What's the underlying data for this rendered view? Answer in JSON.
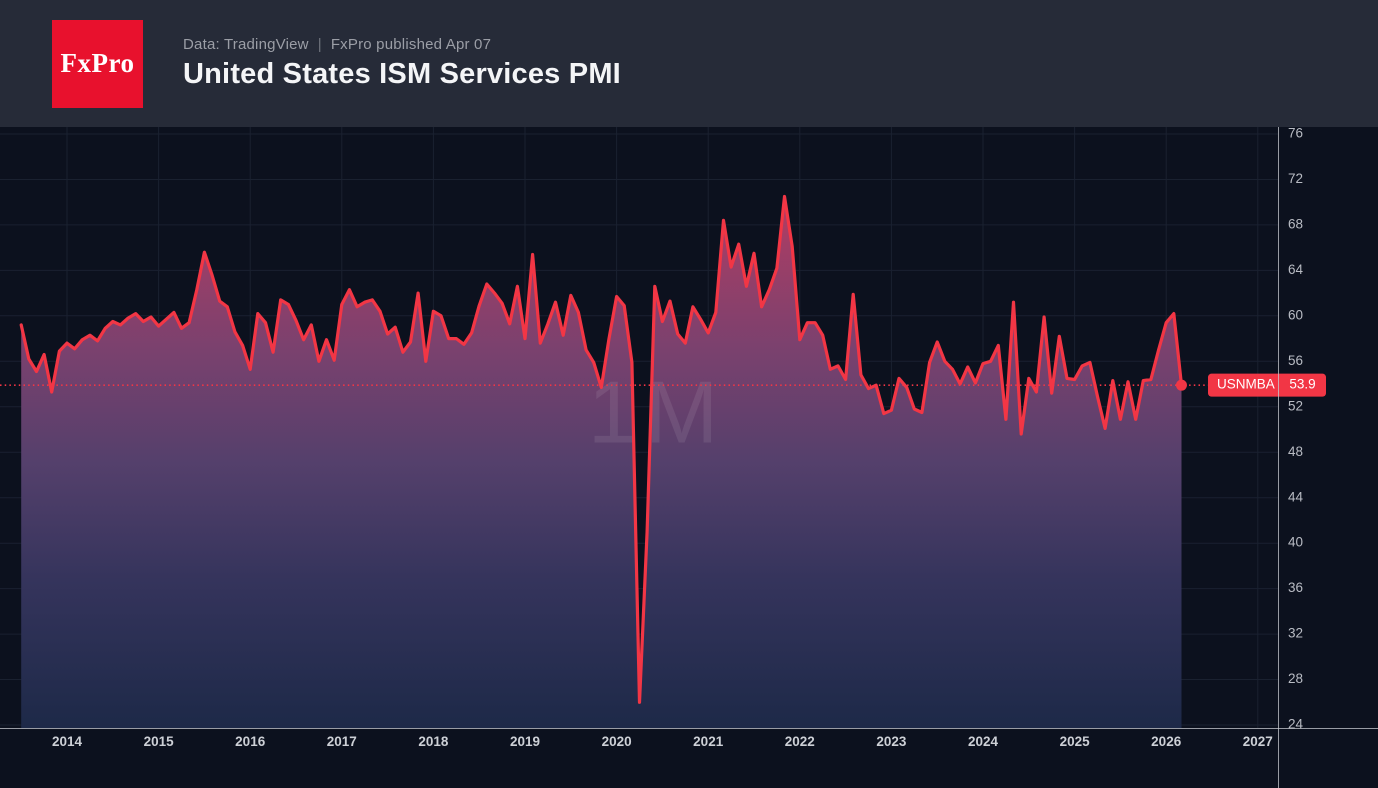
{
  "header": {
    "logo_text": "FxPro",
    "data_source": "Data: TradingView",
    "separator": "|",
    "published": "FxPro published Apr 07",
    "title": "United States ISM Services PMI"
  },
  "chart_data": {
    "type": "area",
    "title": "United States ISM Services PMI",
    "series_name": "USNMBA",
    "timeframe_watermark": "1M",
    "last_value": 53.9,
    "last_value_label": "53.9",
    "frequency": "monthly",
    "start": {
      "year": 2013,
      "month": 7
    },
    "end": {
      "year": 2026,
      "month": 3
    },
    "x_ticks": [
      2014,
      2015,
      2016,
      2017,
      2018,
      2019,
      2020,
      2021,
      2022,
      2023,
      2024,
      2025,
      2026,
      2027
    ],
    "y_ticks": [
      76,
      72,
      68,
      64,
      60,
      56,
      52,
      48,
      44,
      40,
      36,
      32,
      28,
      24
    ],
    "ylim": [
      23.4,
      77.1
    ],
    "grid": true,
    "legend_position": "none",
    "values": [
      59.2,
      56.2,
      55.1,
      56.6,
      53.3,
      56.9,
      57.6,
      57.1,
      57.9,
      58.3,
      57.8,
      58.9,
      59.5,
      59.2,
      59.8,
      60.2,
      59.5,
      59.9,
      59.1,
      59.7,
      60.3,
      58.9,
      59.4,
      62.3,
      65.6,
      63.6,
      61.3,
      60.8,
      58.6,
      57.4,
      55.3,
      60.2,
      59.4,
      56.8,
      61.4,
      61.0,
      59.6,
      57.9,
      59.2,
      56.0,
      57.9,
      56.1,
      61.0,
      62.3,
      60.8,
      61.2,
      61.4,
      60.4,
      58.4,
      59.0,
      56.8,
      57.7,
      62.0,
      56.0,
      60.4,
      60.0,
      58.0,
      58.0,
      57.5,
      58.5,
      60.9,
      62.8,
      62.0,
      61.1,
      59.3,
      62.6,
      58.0,
      65.4,
      57.6,
      59.3,
      61.2,
      58.3,
      61.8,
      60.3,
      57.0,
      55.9,
      53.7,
      58.0,
      61.7,
      60.9,
      55.9,
      26.0,
      41.0,
      62.6,
      59.5,
      61.3,
      58.4,
      57.6,
      60.8,
      59.7,
      58.5,
      60.3,
      68.4,
      64.3,
      66.3,
      62.6,
      65.5,
      60.8,
      62.3,
      64.2,
      70.5,
      66.1,
      57.9,
      59.4,
      59.4,
      58.3,
      55.3,
      55.6,
      54.4,
      61.9,
      54.8,
      53.6,
      53.9,
      51.4,
      51.7,
      54.5,
      53.7,
      51.8,
      51.5,
      55.9,
      57.7,
      56.0,
      55.3,
      54.0,
      55.5,
      54.1,
      55.8,
      56.0,
      57.4,
      50.9,
      61.2,
      49.6,
      54.5,
      53.3,
      59.9,
      53.2,
      58.2,
      54.5,
      54.4,
      55.6,
      55.9,
      52.9,
      50.1,
      54.3,
      50.9,
      54.2,
      50.9,
      54.3,
      54.4,
      57.0,
      59.4,
      60.2,
      53.9
    ],
    "colors": {
      "line": "#f23645",
      "price_badge": "#f23645",
      "dot": "#f23645",
      "chart_bg": "#0c111e",
      "header_bg": "#262b38",
      "grid": "#1a2130",
      "axis_text": "#b9bcc4",
      "year_text": "#cdd0d6",
      "axis_line": "rgba(200,203,210,0.75)",
      "watermark": "rgba(255,255,255,0.085)",
      "logo_bg": "#e8112d",
      "fill_offsets": [
        0,
        0.18,
        0.36,
        0.55,
        0.75,
        1
      ],
      "fill_stops": [
        "#cf3a56",
        "#a23e66",
        "#7b416e",
        "#55406c",
        "#35345c",
        "#1d2948"
      ]
    }
  }
}
